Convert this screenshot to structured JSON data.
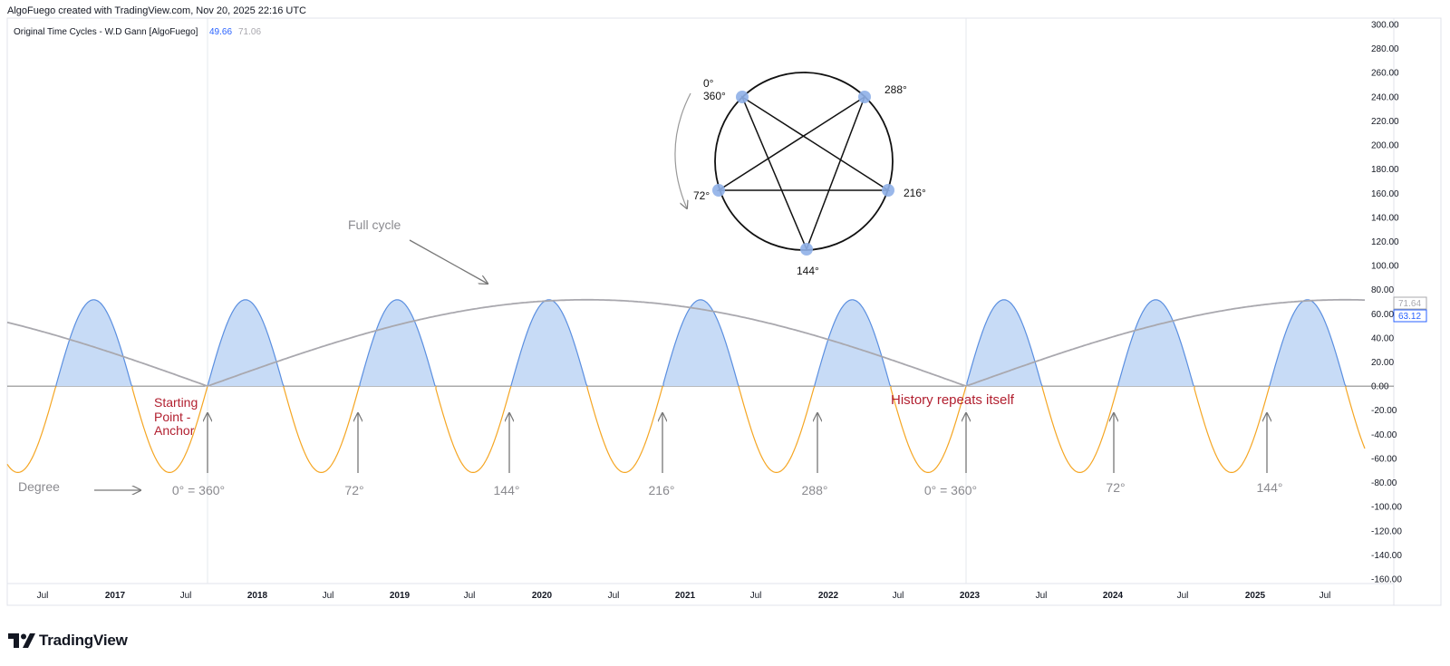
{
  "header": {
    "text": "AlgoFuego created with TradingView.com, Nov 20, 2025 22:16 UTC"
  },
  "indicator": {
    "name": "Original Time Cycles - W.D Gann [AlgoFuego]",
    "value1": "49.66",
    "value2": "71.06"
  },
  "logo": {
    "text": "TradingView"
  },
  "colors": {
    "positive_fill": "#c7dbf6",
    "positive_line": "#5b8fe0",
    "negative_line": "#f5a623",
    "full_cycle": "#a9a8ae",
    "anchor_text": "#b22030",
    "grey_text": "#8a8a8f",
    "badge_blue": "#2962ff",
    "badge_grey": "#a9a8ae"
  },
  "chart_data": {
    "type": "line",
    "ylim": [
      -160,
      300
    ],
    "y_ticks": [
      "300.00",
      "280.00",
      "260.00",
      "240.00",
      "220.00",
      "200.00",
      "180.00",
      "160.00",
      "140.00",
      "120.00",
      "100.00",
      "80.00",
      "60.00",
      "40.00",
      "20.00",
      "0.00",
      "-20.00",
      "-40.00",
      "-60.00",
      "-80.00",
      "-100.00",
      "-120.00",
      "-140.00",
      "-160.00"
    ],
    "x_ticks": [
      {
        "label": "Jul",
        "bold": false
      },
      {
        "label": "2017",
        "bold": true
      },
      {
        "label": "Jul",
        "bold": false
      },
      {
        "label": "2018",
        "bold": true
      },
      {
        "label": "Jul",
        "bold": false
      },
      {
        "label": "2019",
        "bold": true
      },
      {
        "label": "Jul",
        "bold": false
      },
      {
        "label": "2020",
        "bold": true
      },
      {
        "label": "Jul",
        "bold": false
      },
      {
        "label": "2021",
        "bold": true
      },
      {
        "label": "Jul",
        "bold": false
      },
      {
        "label": "2022",
        "bold": true
      },
      {
        "label": "Jul",
        "bold": false
      },
      {
        "label": "2023",
        "bold": true
      },
      {
        "label": "Jul",
        "bold": false
      },
      {
        "label": "2024",
        "bold": true
      },
      {
        "label": "Jul",
        "bold": false
      },
      {
        "label": "2025",
        "bold": true
      },
      {
        "label": "Jul",
        "bold": false
      }
    ],
    "series": [
      {
        "type": "sine_cycle",
        "amplitude": 71.64,
        "cycle_length_years": 2.14,
        "anchors": [
          "2017-08",
          "2022-12"
        ]
      },
      {
        "type": "full_cycle_arc",
        "amplitude": 71.64,
        "cycle_length_years": 10.7,
        "anchors": [
          "2017-08",
          "2022-12"
        ]
      }
    ],
    "price_labels": {
      "grey": "71.64",
      "blue": "63.12"
    }
  },
  "annotations": {
    "full_cycle": "Full cycle",
    "starting_point": [
      "Starting",
      "Point -",
      "Anchor"
    ],
    "history": "History repeats itself",
    "degree": "Degree",
    "degree_labels": [
      "0° = 360°",
      "72°",
      "144°",
      "216°",
      "288°",
      "0° = 360°",
      "72°",
      "144°"
    ]
  },
  "pentagram": {
    "labels": {
      "top_a": "0°",
      "top_b": "360°",
      "top_right": "288°",
      "left": "72°",
      "right": "216°",
      "bottom": "144°"
    }
  }
}
